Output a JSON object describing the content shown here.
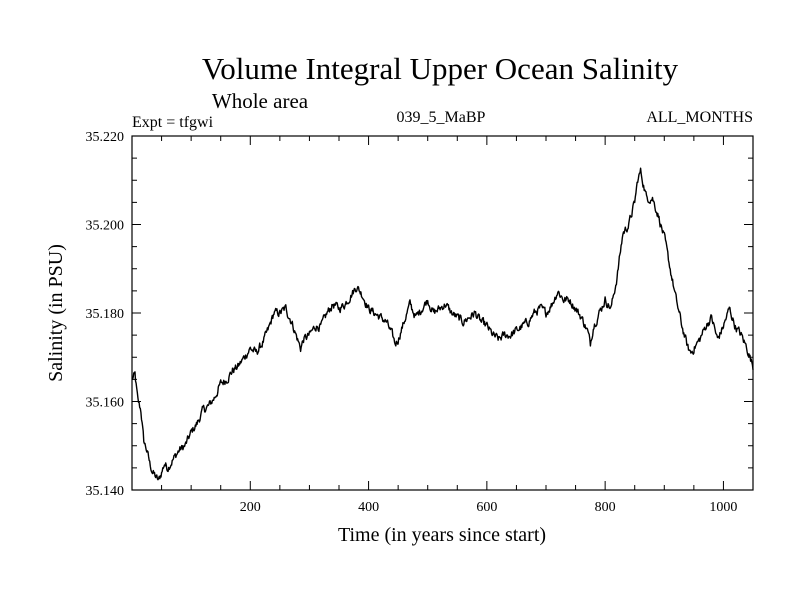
{
  "chart_data": {
    "type": "line",
    "title": "Volume Integral Upper Ocean Salinity",
    "subtitle": "Whole area",
    "experiment_label": "Expt = tfgwi",
    "run_label": "039_5_MaBP",
    "period_label": "ALL_MONTHS",
    "xlabel": "Time (in years since start)",
    "ylabel": "Salinity (in PSU)",
    "xlim": [
      0,
      1050
    ],
    "ylim": [
      35.14,
      35.22
    ],
    "x_ticks": [
      200,
      400,
      600,
      800,
      1000
    ],
    "x_tick_labels": [
      "200",
      "400",
      "600",
      "800",
      "1000"
    ],
    "y_ticks": [
      35.14,
      35.16,
      35.18,
      35.2,
      35.22
    ],
    "y_tick_labels": [
      "35.140",
      "35.160",
      "35.180",
      "35.200",
      "35.220"
    ],
    "grid": false,
    "series": [
      {
        "name": "Salinity",
        "color": "#000000",
        "x": [
          0,
          5,
          10,
          15,
          20,
          25,
          30,
          35,
          40,
          45,
          50,
          55,
          60,
          70,
          80,
          90,
          100,
          110,
          120,
          130,
          140,
          150,
          160,
          170,
          180,
          190,
          200,
          210,
          220,
          230,
          240,
          250,
          260,
          270,
          280,
          285,
          290,
          300,
          310,
          320,
          330,
          340,
          350,
          360,
          370,
          380,
          390,
          400,
          410,
          420,
          430,
          440,
          445,
          450,
          460,
          470,
          480,
          490,
          500,
          510,
          520,
          530,
          540,
          550,
          560,
          570,
          580,
          590,
          600,
          610,
          620,
          630,
          640,
          650,
          660,
          670,
          680,
          690,
          700,
          710,
          720,
          730,
          740,
          750,
          760,
          770,
          775,
          780,
          790,
          800,
          810,
          820,
          830,
          840,
          850,
          855,
          860,
          865,
          870,
          880,
          890,
          900,
          910,
          920,
          930,
          940,
          945,
          950,
          960,
          970,
          980,
          990,
          1000,
          1010,
          1020,
          1030,
          1040,
          1050
        ],
        "values": [
          35.165,
          35.166,
          35.16,
          35.158,
          35.151,
          35.149,
          35.146,
          35.144,
          35.143,
          35.142,
          35.144,
          35.146,
          35.145,
          35.147,
          35.149,
          35.15,
          35.153,
          35.155,
          35.158,
          35.159,
          35.161,
          35.164,
          35.165,
          35.167,
          35.168,
          35.17,
          35.172,
          35.171,
          35.173,
          35.176,
          35.18,
          35.18,
          35.181,
          35.178,
          35.174,
          35.172,
          35.174,
          35.175,
          35.177,
          35.177,
          35.18,
          35.182,
          35.181,
          35.182,
          35.184,
          35.186,
          35.184,
          35.181,
          35.18,
          35.179,
          35.178,
          35.175,
          35.173,
          35.174,
          35.178,
          35.182,
          35.179,
          35.181,
          35.183,
          35.18,
          35.181,
          35.182,
          35.18,
          35.179,
          35.178,
          35.179,
          35.18,
          35.178,
          35.177,
          35.175,
          35.174,
          35.175,
          35.175,
          35.176,
          35.177,
          35.178,
          35.18,
          35.181,
          35.18,
          35.182,
          35.185,
          35.183,
          35.183,
          35.181,
          35.179,
          35.176,
          35.173,
          35.177,
          35.18,
          35.183,
          35.181,
          35.188,
          35.198,
          35.2,
          35.205,
          35.21,
          35.212,
          35.209,
          35.206,
          35.206,
          35.202,
          35.197,
          35.19,
          35.183,
          35.177,
          35.172,
          35.171,
          35.172,
          35.174,
          35.177,
          35.179,
          35.174,
          35.177,
          35.181,
          35.177,
          35.175,
          35.172,
          35.168
        ]
      }
    ]
  }
}
